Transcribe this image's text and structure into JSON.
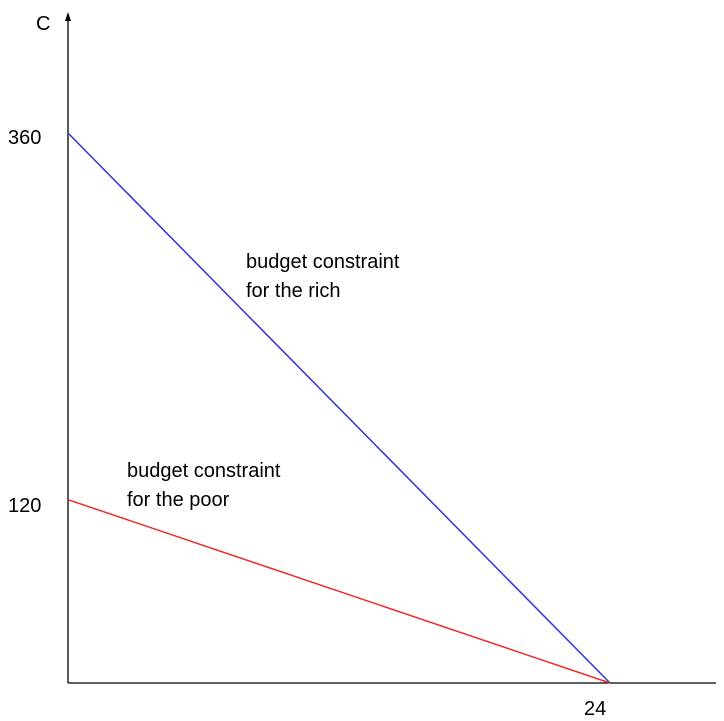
{
  "chart_data": {
    "type": "line",
    "title": "",
    "xlabel": "",
    "ylabel": "C",
    "xlim": [
      0,
      24
    ],
    "ylim": [
      0,
      360
    ],
    "x_ticks": [
      "24"
    ],
    "y_ticks": [
      "360",
      "120"
    ],
    "grid": false,
    "series": [
      {
        "label_lines": [
          "budget constraint",
          "for the rich"
        ],
        "color": "#3333dd",
        "points": [
          [
            0,
            360
          ],
          [
            24,
            0
          ]
        ]
      },
      {
        "label_lines": [
          "budget constraint",
          "for the poor"
        ],
        "color": "#ee2a2a",
        "points": [
          [
            0,
            120
          ],
          [
            24,
            0
          ]
        ]
      }
    ]
  }
}
